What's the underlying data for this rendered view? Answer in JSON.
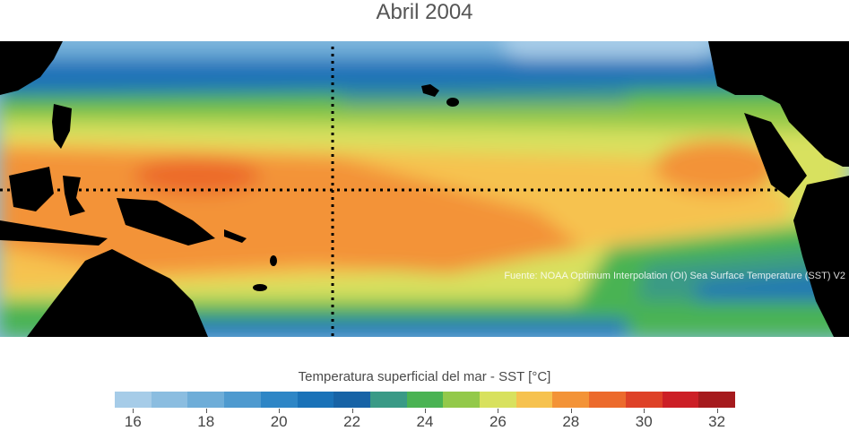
{
  "title": "Abril 2004",
  "source": "Fuente: NOAA Optimum Interpolation (OI) Sea Surface Temperature (SST) V2",
  "legend": {
    "title": "Temperatura superficial del mar - SST  [°C]",
    "unit": "°C",
    "colors": [
      "#a6cce8",
      "#8bbde0",
      "#6eadd8",
      "#4e9acf",
      "#2e86c6",
      "#1a72b8",
      "#1763a6",
      "#3a9a86",
      "#4ab353",
      "#93c94a",
      "#d8e15e",
      "#f6c24f",
      "#f39337",
      "#ec6a2c",
      "#de4127",
      "#cc1f26",
      "#a51a1d"
    ],
    "tick_labels": [
      "16",
      "18",
      "20",
      "22",
      "24",
      "26",
      "28",
      "30",
      "32"
    ]
  },
  "map": {
    "region": "Pacífico tropical",
    "reference_lines": [
      "ecuador",
      "meridiano"
    ],
    "land_color": "#000000"
  }
}
